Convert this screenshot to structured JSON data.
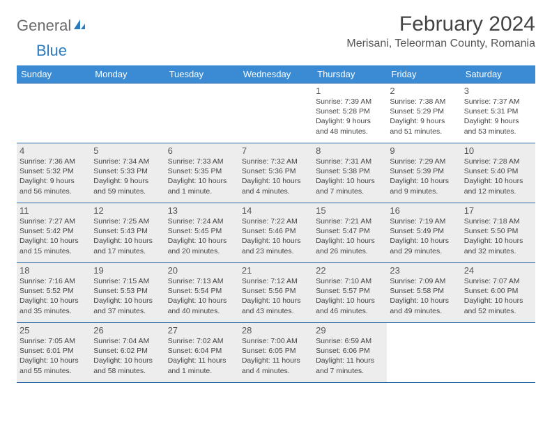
{
  "logo": {
    "word1": "General",
    "word2": "Blue"
  },
  "title": "February 2024",
  "location": "Merisani, Teleorman County, Romania",
  "dow": [
    "Sunday",
    "Monday",
    "Tuesday",
    "Wednesday",
    "Thursday",
    "Friday",
    "Saturday"
  ],
  "colors": {
    "header_bg": "#3b8bd4",
    "header_fg": "#ffffff",
    "cell_border": "#2b6aa8",
    "shaded_bg": "#ededed",
    "logo_gray": "#6a6a6a",
    "logo_blue": "#2b7bbf"
  },
  "weeks": [
    [
      {
        "num": "",
        "shaded": false,
        "lines": []
      },
      {
        "num": "",
        "shaded": false,
        "lines": []
      },
      {
        "num": "",
        "shaded": false,
        "lines": []
      },
      {
        "num": "",
        "shaded": false,
        "lines": []
      },
      {
        "num": "1",
        "shaded": false,
        "lines": [
          "Sunrise: 7:39 AM",
          "Sunset: 5:28 PM",
          "Daylight: 9 hours and 48 minutes."
        ]
      },
      {
        "num": "2",
        "shaded": false,
        "lines": [
          "Sunrise: 7:38 AM",
          "Sunset: 5:29 PM",
          "Daylight: 9 hours and 51 minutes."
        ]
      },
      {
        "num": "3",
        "shaded": false,
        "lines": [
          "Sunrise: 7:37 AM",
          "Sunset: 5:31 PM",
          "Daylight: 9 hours and 53 minutes."
        ]
      }
    ],
    [
      {
        "num": "4",
        "shaded": true,
        "lines": [
          "Sunrise: 7:36 AM",
          "Sunset: 5:32 PM",
          "Daylight: 9 hours and 56 minutes."
        ]
      },
      {
        "num": "5",
        "shaded": true,
        "lines": [
          "Sunrise: 7:34 AM",
          "Sunset: 5:33 PM",
          "Daylight: 9 hours and 59 minutes."
        ]
      },
      {
        "num": "6",
        "shaded": true,
        "lines": [
          "Sunrise: 7:33 AM",
          "Sunset: 5:35 PM",
          "Daylight: 10 hours and 1 minute."
        ]
      },
      {
        "num": "7",
        "shaded": true,
        "lines": [
          "Sunrise: 7:32 AM",
          "Sunset: 5:36 PM",
          "Daylight: 10 hours and 4 minutes."
        ]
      },
      {
        "num": "8",
        "shaded": true,
        "lines": [
          "Sunrise: 7:31 AM",
          "Sunset: 5:38 PM",
          "Daylight: 10 hours and 7 minutes."
        ]
      },
      {
        "num": "9",
        "shaded": true,
        "lines": [
          "Sunrise: 7:29 AM",
          "Sunset: 5:39 PM",
          "Daylight: 10 hours and 9 minutes."
        ]
      },
      {
        "num": "10",
        "shaded": true,
        "lines": [
          "Sunrise: 7:28 AM",
          "Sunset: 5:40 PM",
          "Daylight: 10 hours and 12 minutes."
        ]
      }
    ],
    [
      {
        "num": "11",
        "shaded": true,
        "lines": [
          "Sunrise: 7:27 AM",
          "Sunset: 5:42 PM",
          "Daylight: 10 hours and 15 minutes."
        ]
      },
      {
        "num": "12",
        "shaded": true,
        "lines": [
          "Sunrise: 7:25 AM",
          "Sunset: 5:43 PM",
          "Daylight: 10 hours and 17 minutes."
        ]
      },
      {
        "num": "13",
        "shaded": true,
        "lines": [
          "Sunrise: 7:24 AM",
          "Sunset: 5:45 PM",
          "Daylight: 10 hours and 20 minutes."
        ]
      },
      {
        "num": "14",
        "shaded": true,
        "lines": [
          "Sunrise: 7:22 AM",
          "Sunset: 5:46 PM",
          "Daylight: 10 hours and 23 minutes."
        ]
      },
      {
        "num": "15",
        "shaded": true,
        "lines": [
          "Sunrise: 7:21 AM",
          "Sunset: 5:47 PM",
          "Daylight: 10 hours and 26 minutes."
        ]
      },
      {
        "num": "16",
        "shaded": true,
        "lines": [
          "Sunrise: 7:19 AM",
          "Sunset: 5:49 PM",
          "Daylight: 10 hours and 29 minutes."
        ]
      },
      {
        "num": "17",
        "shaded": true,
        "lines": [
          "Sunrise: 7:18 AM",
          "Sunset: 5:50 PM",
          "Daylight: 10 hours and 32 minutes."
        ]
      }
    ],
    [
      {
        "num": "18",
        "shaded": true,
        "lines": [
          "Sunrise: 7:16 AM",
          "Sunset: 5:52 PM",
          "Daylight: 10 hours and 35 minutes."
        ]
      },
      {
        "num": "19",
        "shaded": true,
        "lines": [
          "Sunrise: 7:15 AM",
          "Sunset: 5:53 PM",
          "Daylight: 10 hours and 37 minutes."
        ]
      },
      {
        "num": "20",
        "shaded": true,
        "lines": [
          "Sunrise: 7:13 AM",
          "Sunset: 5:54 PM",
          "Daylight: 10 hours and 40 minutes."
        ]
      },
      {
        "num": "21",
        "shaded": true,
        "lines": [
          "Sunrise: 7:12 AM",
          "Sunset: 5:56 PM",
          "Daylight: 10 hours and 43 minutes."
        ]
      },
      {
        "num": "22",
        "shaded": true,
        "lines": [
          "Sunrise: 7:10 AM",
          "Sunset: 5:57 PM",
          "Daylight: 10 hours and 46 minutes."
        ]
      },
      {
        "num": "23",
        "shaded": true,
        "lines": [
          "Sunrise: 7:09 AM",
          "Sunset: 5:58 PM",
          "Daylight: 10 hours and 49 minutes."
        ]
      },
      {
        "num": "24",
        "shaded": true,
        "lines": [
          "Sunrise: 7:07 AM",
          "Sunset: 6:00 PM",
          "Daylight: 10 hours and 52 minutes."
        ]
      }
    ],
    [
      {
        "num": "25",
        "shaded": true,
        "lines": [
          "Sunrise: 7:05 AM",
          "Sunset: 6:01 PM",
          "Daylight: 10 hours and 55 minutes."
        ]
      },
      {
        "num": "26",
        "shaded": true,
        "lines": [
          "Sunrise: 7:04 AM",
          "Sunset: 6:02 PM",
          "Daylight: 10 hours and 58 minutes."
        ]
      },
      {
        "num": "27",
        "shaded": true,
        "lines": [
          "Sunrise: 7:02 AM",
          "Sunset: 6:04 PM",
          "Daylight: 11 hours and 1 minute."
        ]
      },
      {
        "num": "28",
        "shaded": true,
        "lines": [
          "Sunrise: 7:00 AM",
          "Sunset: 6:05 PM",
          "Daylight: 11 hours and 4 minutes."
        ]
      },
      {
        "num": "29",
        "shaded": true,
        "lines": [
          "Sunrise: 6:59 AM",
          "Sunset: 6:06 PM",
          "Daylight: 11 hours and 7 minutes."
        ]
      },
      {
        "num": "",
        "shaded": false,
        "lines": []
      },
      {
        "num": "",
        "shaded": false,
        "lines": []
      }
    ]
  ]
}
